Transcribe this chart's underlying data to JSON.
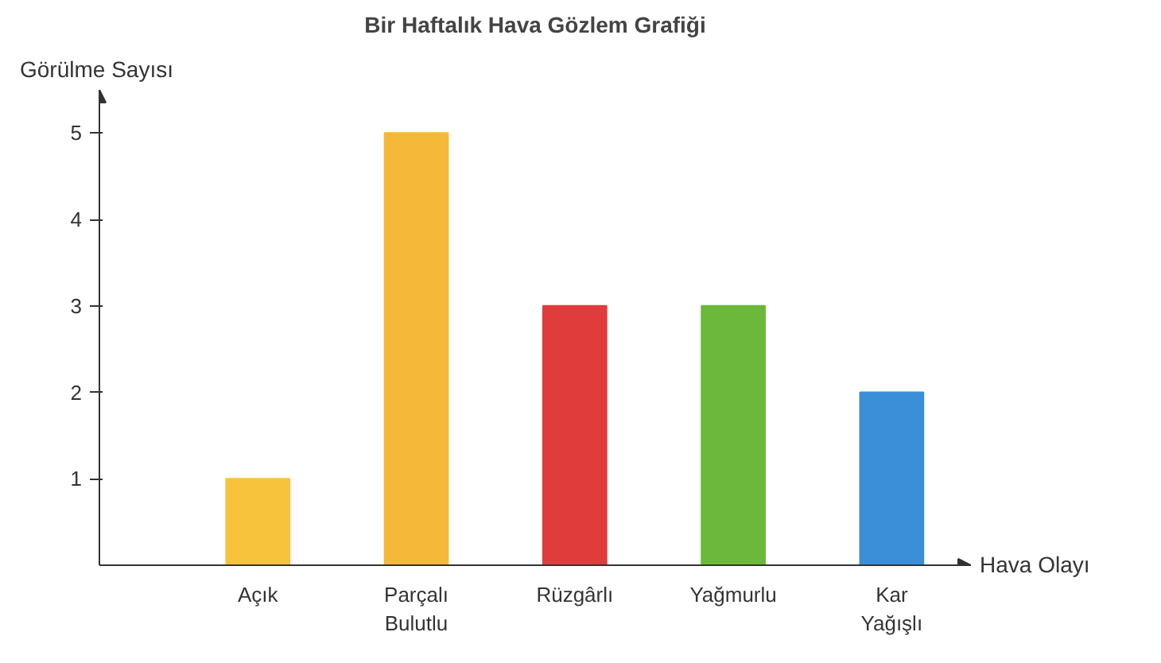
{
  "chart_data": {
    "type": "bar",
    "title": "Bir Haftalık Hava Gözlem Grafiği",
    "ylabel": "Görülme Sayısı",
    "xlabel": "Hava Olayı",
    "categories": [
      "Açık",
      "Parçalı Bulutlu",
      "Rüzgârlı",
      "Yağmurlu",
      "Kar Yağışlı"
    ],
    "values": [
      1,
      5,
      3,
      3,
      2
    ],
    "colors": [
      "#f7c23c",
      "#f5b93a",
      "#e03c3c",
      "#6bb83a",
      "#3a8fd8"
    ],
    "ylim": [
      0,
      5.5
    ],
    "yticks": [
      1,
      2,
      3,
      4,
      5
    ],
    "grid": false
  }
}
